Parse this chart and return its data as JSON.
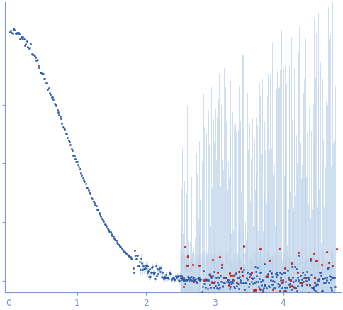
{
  "title": "",
  "xlabel": "",
  "ylabel": "",
  "xlim": [
    -0.05,
    4.85
  ],
  "ylim": [
    -0.04,
    0.95
  ],
  "background_color": "#ffffff",
  "dot_color_blue": "#2255aa",
  "dot_color_red": "#cc2222",
  "error_band_color": "#b8cfe8",
  "axis_color": "#7799cc",
  "tick_color": "#7799cc",
  "x_ticks": [
    0,
    1,
    2,
    3,
    4
  ],
  "y_ticks": [
    0.0,
    0.2,
    0.4,
    0.6
  ],
  "seed": 12345
}
